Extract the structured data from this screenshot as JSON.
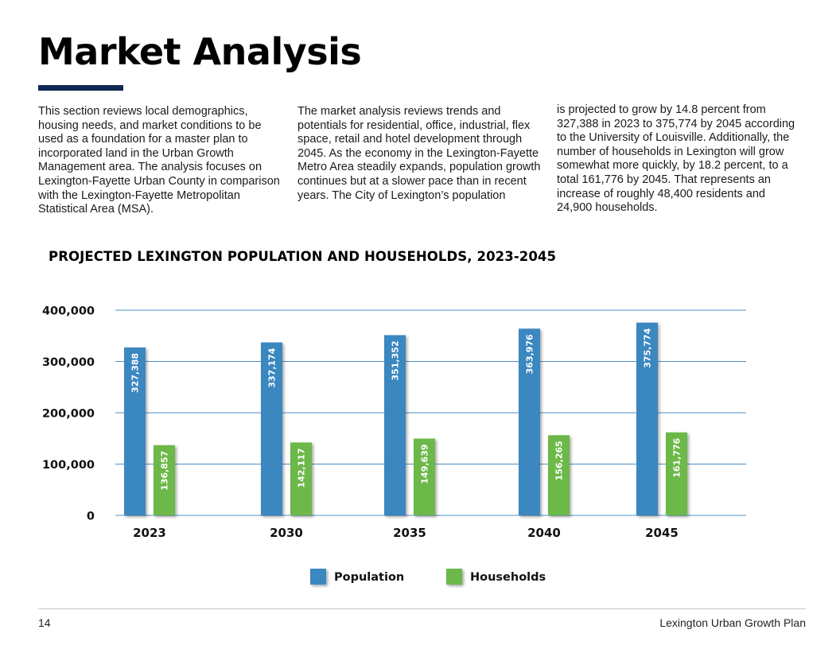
{
  "page": {
    "title": "Market Analysis",
    "paragraphs": [
      "This section reviews local demographics, housing needs, and market conditions to be used as a foundation for a master plan to incorporated land in the Urban Growth Management area. The analysis focuses on Lexington-Fayette Urban County in comparison with the Lexington-Fayette Metropolitan Statistical Area (MSA).",
      "The market analysis reviews trends and potentials for residential, office, industrial, flex space, retail and hotel development through 2045. As the economy in the Lexington-Fayette Metro Area steadily expands, population growth continues but at a slower pace than in recent years. The City of Lexington’s population",
      "is projected to grow by 14.8 percent from 327,388 in 2023 to 375,774 by 2045 according to the University of Louisville. Additionally, the number of households in Lexington will grow somewhat more quickly, by 18.2 percent, to a total 161,776 by 2045. That represents an increase of roughly 48,400 residents and 24,900 households."
    ]
  },
  "footer": {
    "page_number": "14",
    "document_title": "Lexington Urban Growth Plan"
  },
  "chart_data": {
    "type": "bar",
    "title": "PROJECTED LEXINGTON POPULATION AND HOUSEHOLDS, 2023-2045",
    "xlabel": "",
    "ylabel": "",
    "categories": [
      "2023",
      "2030",
      "2035",
      "2040",
      "2045"
    ],
    "series": [
      {
        "name": "Population",
        "color": "#3a87c0",
        "values": [
          327388,
          337174,
          351352,
          363976,
          375774
        ],
        "labels": [
          "327,388",
          "337,174",
          "351,352",
          "363,976",
          "375,774"
        ]
      },
      {
        "name": "Households",
        "color": "#6cb84a",
        "values": [
          136857,
          142117,
          149639,
          156265,
          161776
        ],
        "labels": [
          "136,857",
          "142,117",
          "149,639",
          "156,265",
          "161,776"
        ]
      }
    ],
    "ylim": [
      0,
      400000
    ],
    "yticks": [
      0,
      100000,
      200000,
      300000,
      400000
    ],
    "ytick_labels": [
      "0",
      "100,000",
      "200,000",
      "300,000",
      "400,000"
    ],
    "grid": true,
    "legend": "bottom-center"
  }
}
